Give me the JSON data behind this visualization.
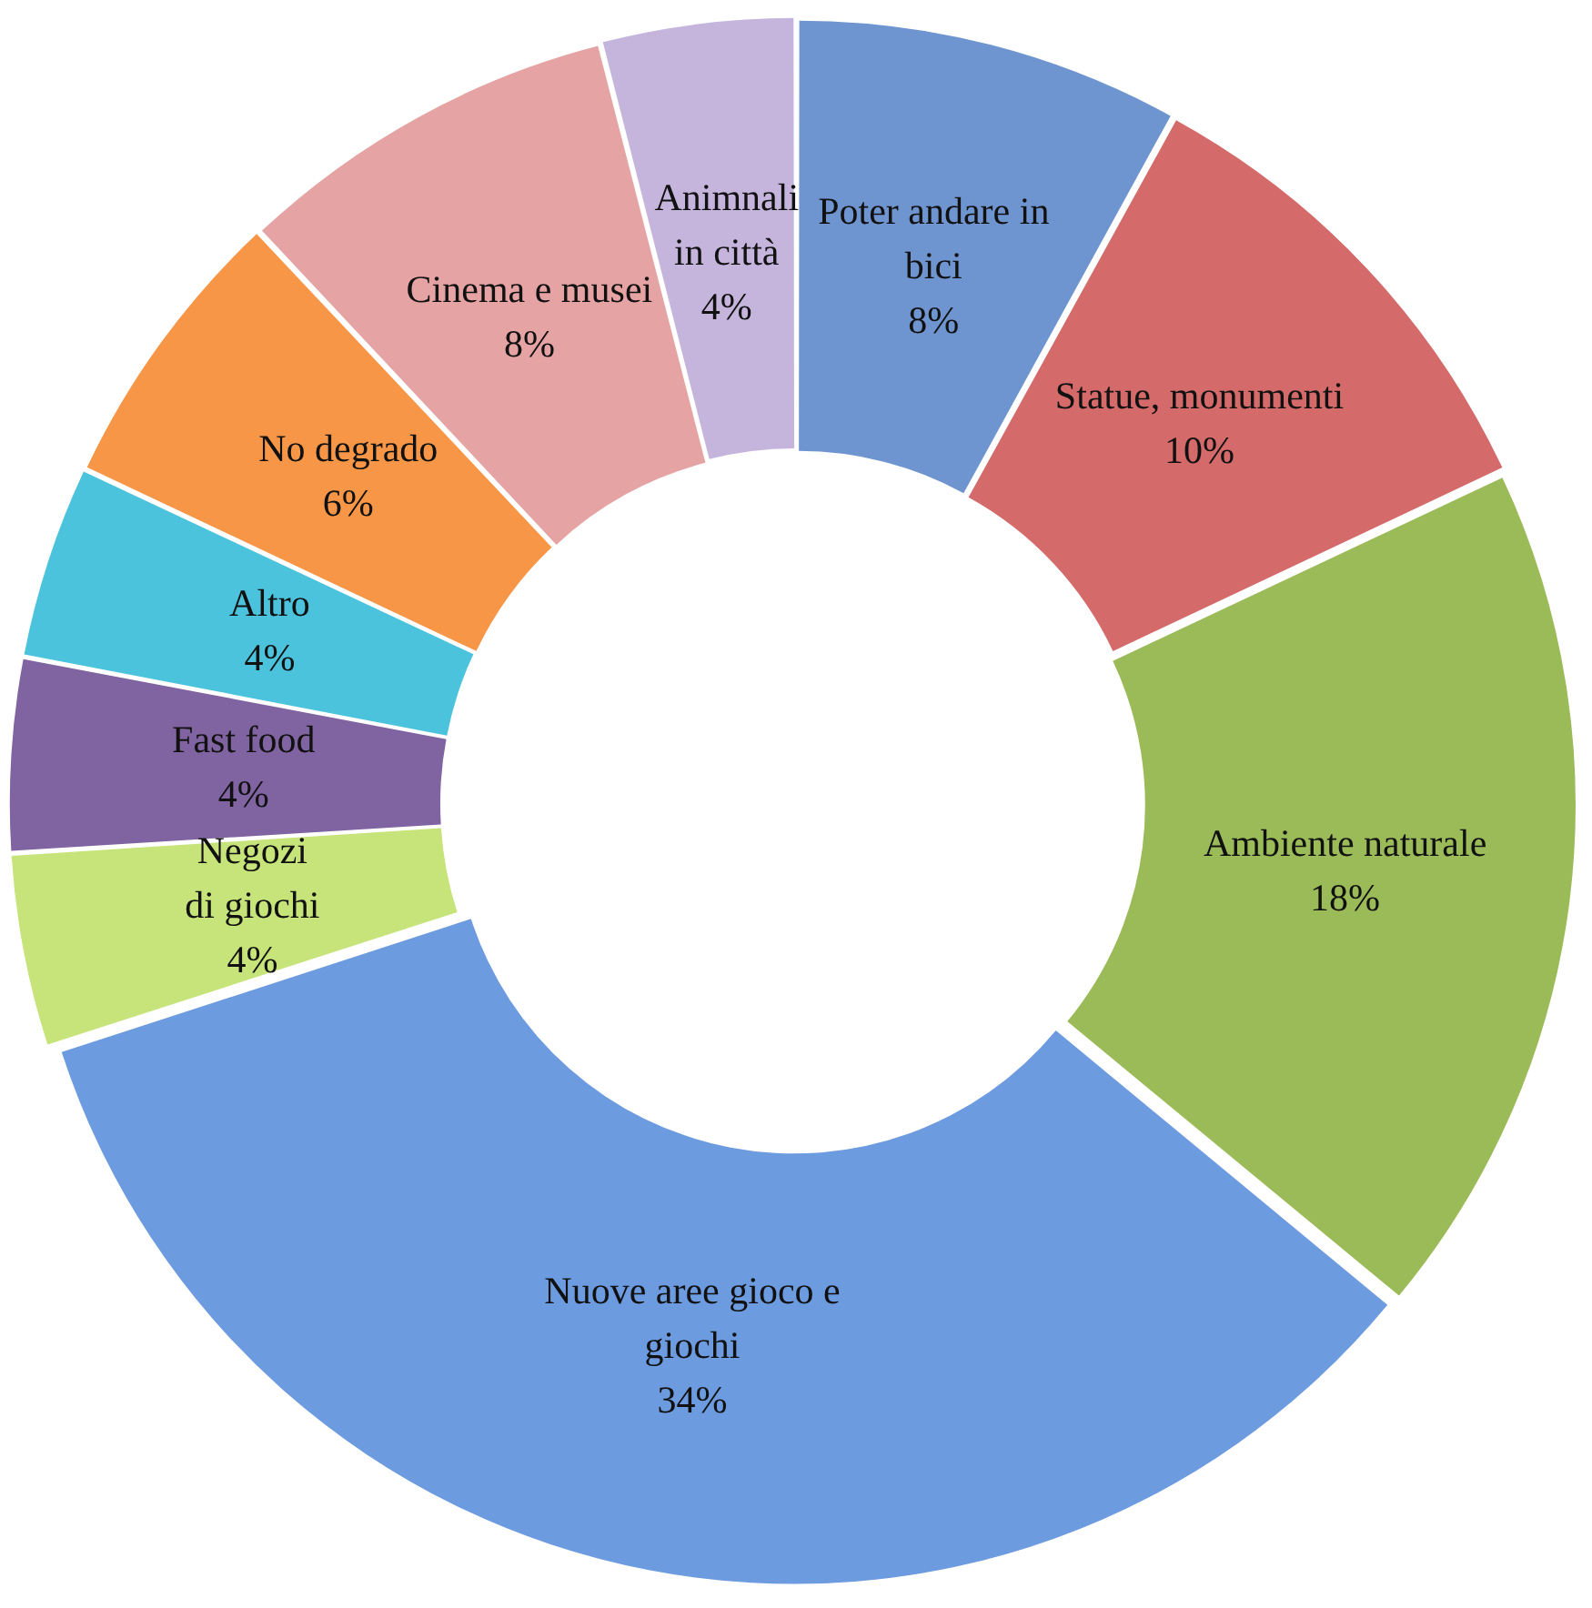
{
  "chart_data": {
    "type": "donut",
    "categories": [
      "Poter andare in bici",
      "Statue, monumenti",
      "Ambiente naturale",
      "Nuove aree gioco e giochi",
      "Negozi di giochi",
      "Fast food",
      "Altro",
      "No degrado",
      "Cinema e musei",
      "Animnali in città"
    ],
    "values": [
      8,
      10,
      18,
      34,
      4,
      4,
      4,
      6,
      8,
      4
    ],
    "value_labels": [
      "8%",
      "10%",
      "18%",
      "34%",
      "4%",
      "4%",
      "4%",
      "6%",
      "8%",
      "4%"
    ],
    "colors": [
      "#6f95d0",
      "#d46a6a",
      "#9bbb59",
      "#6d9be0",
      "#c6e47a",
      "#8064a2",
      "#4bc3dd",
      "#f79646",
      "#e6a3a3",
      "#c5b5dd"
    ],
    "legend": false
  }
}
